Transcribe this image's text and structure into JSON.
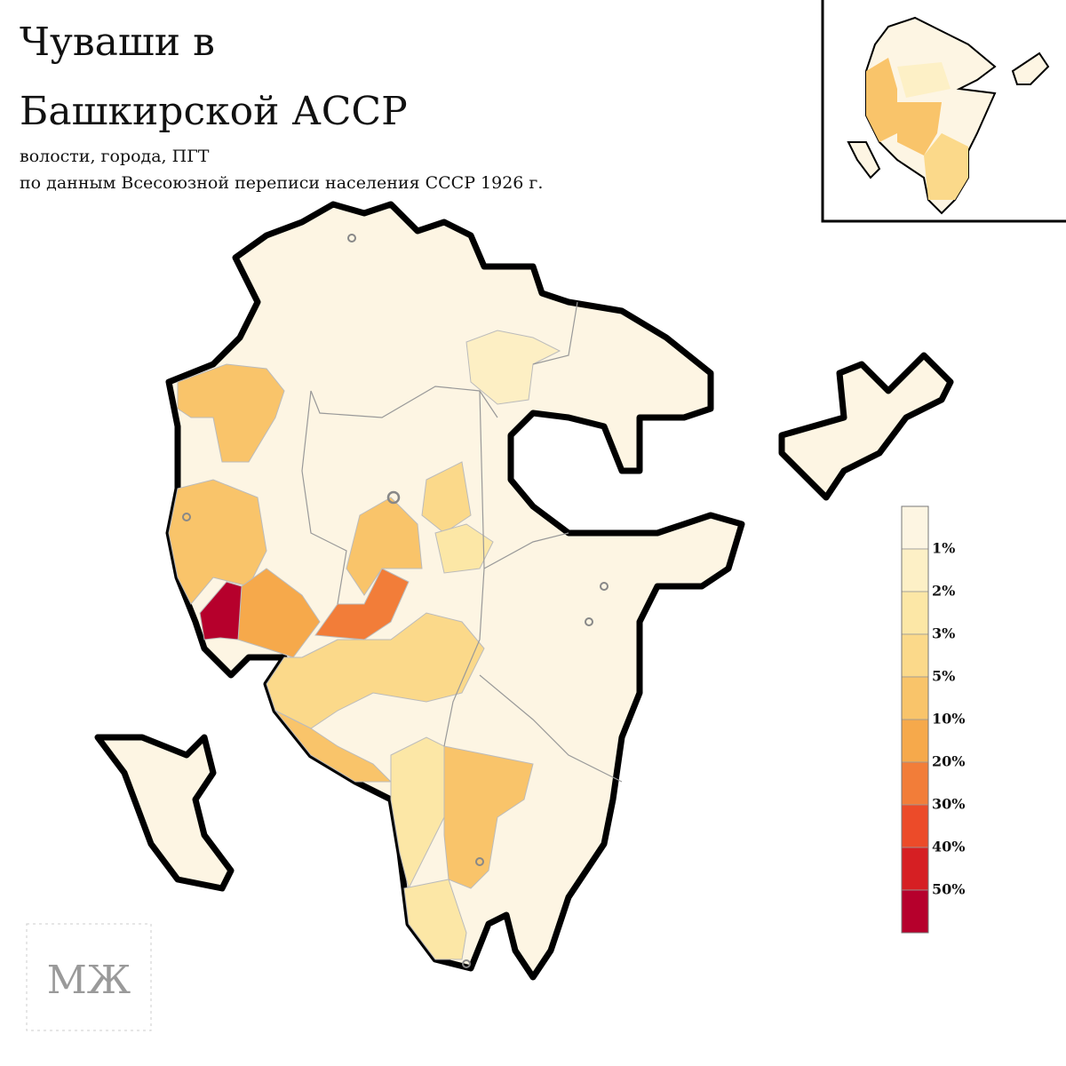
{
  "header": {
    "title": [
      "Чуваши в",
      "Башкирской АССР"
    ],
    "subtitle": [
      "волости, города, ПГТ",
      "по данным Всесоюзной переписи населения СССР 1926 г."
    ]
  },
  "legend": {
    "labels": [
      "1%",
      "2%",
      "3%",
      "5%",
      "10%",
      "20%",
      "30%",
      "40%",
      "50%"
    ],
    "colors": [
      "#fdf5e2",
      "#fdf0c6",
      "#fce7a6",
      "#fbd98a",
      "#f9c46a",
      "#f6a94b",
      "#f27d39",
      "#ec4b29",
      "#d61f23",
      "#b6002c"
    ]
  },
  "logo": "МЖ"
}
